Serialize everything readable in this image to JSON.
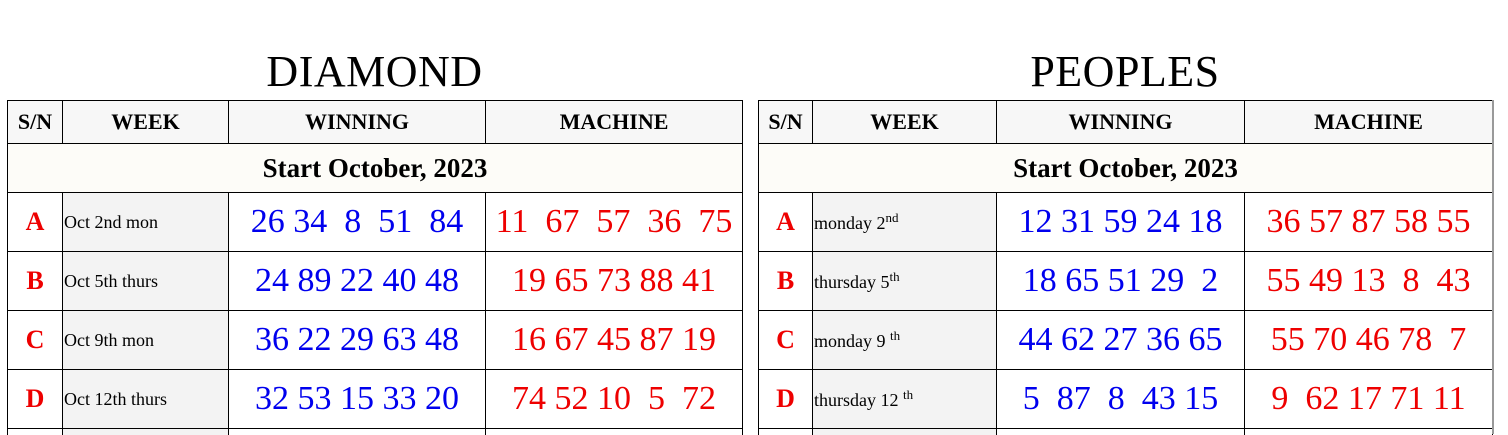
{
  "tables": [
    {
      "title": "DIAMOND",
      "headers": {
        "sn": "S/N",
        "week": "WEEK",
        "winning": "WINNING",
        "machine": "MACHINE"
      },
      "start": "Start October, 2023",
      "rows": [
        {
          "sn": "A",
          "week": "Oct 2nd mon",
          "winning": [
            "26",
            "34",
            "8",
            "51",
            "84"
          ],
          "machine": [
            "11",
            "67",
            "57",
            "36",
            "75"
          ]
        },
        {
          "sn": "B",
          "week": "Oct 5th thurs",
          "winning": [
            "24",
            "89",
            "22",
            "40",
            "48"
          ],
          "machine": [
            "19",
            "65",
            "73",
            "88",
            "41"
          ]
        },
        {
          "sn": "C",
          "week": "Oct 9th mon",
          "winning": [
            "36",
            "22",
            "29",
            "63",
            "48"
          ],
          "machine": [
            "16",
            "67",
            "45",
            "87",
            "19"
          ]
        },
        {
          "sn": "D",
          "week": "Oct 12th thurs",
          "winning": [
            "32",
            "53",
            "15",
            "33",
            "20"
          ],
          "machine": [
            "74",
            "52",
            "10",
            "5",
            "72"
          ]
        }
      ]
    },
    {
      "title": "PEOPLES",
      "headers": {
        "sn": "S/N",
        "week": "WEEK",
        "winning": "WINNING",
        "machine": "MACHINE"
      },
      "start": "Start October, 2023",
      "rows": [
        {
          "sn": "A",
          "week": "monday 2",
          "week_sup": "nd",
          "winning": [
            "12",
            "31",
            "59",
            "24",
            "18"
          ],
          "machine": [
            "36",
            "57",
            "87",
            "58",
            "55"
          ]
        },
        {
          "sn": "B",
          "week": "thursday 5",
          "week_sup": "th",
          "winning": [
            "18",
            "65",
            "51",
            "29",
            "2"
          ],
          "machine": [
            "55",
            "49",
            "13",
            "8",
            "43"
          ]
        },
        {
          "sn": "C",
          "week": "monday 9 ",
          "week_sup": "th",
          "winning": [
            "44",
            "62",
            "27",
            "36",
            "65"
          ],
          "machine": [
            "55",
            "70",
            "46",
            "78",
            "7"
          ]
        },
        {
          "sn": "D",
          "week": "thursday 12 ",
          "week_sup": "th",
          "winning": [
            "5",
            "87",
            "8",
            "43",
            "15"
          ],
          "machine": [
            "9",
            "62",
            "17",
            "71",
            "11"
          ]
        }
      ]
    }
  ]
}
